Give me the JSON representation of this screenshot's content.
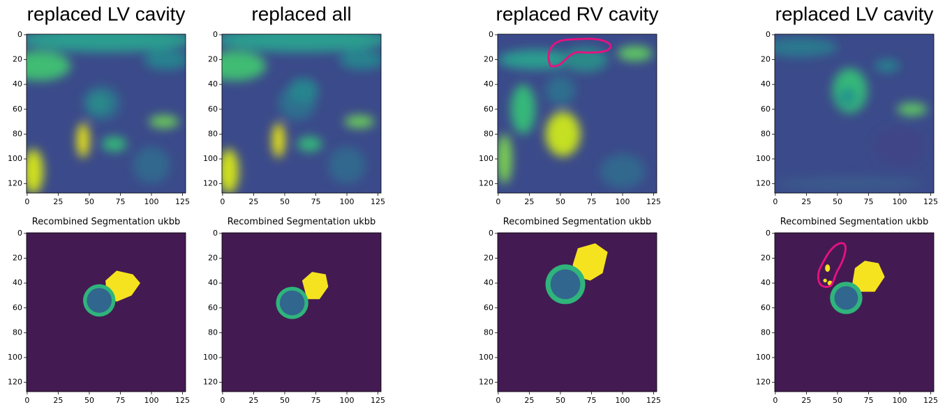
{
  "columns": [
    {
      "title": "replaced LV cavity",
      "seg_title": "Recombined Segmentation ukbb"
    },
    {
      "title": "replaced all",
      "seg_title": "Recombined Segmentation ukbb"
    },
    {
      "title": "replaced RV cavity",
      "seg_title": "Recombined Segmentation ukbb"
    },
    {
      "title": "replaced LV cavity",
      "seg_title": "Recombined Segmentation ukbb"
    }
  ],
  "axes": {
    "xticks": [
      0,
      25,
      50,
      75,
      100,
      125
    ],
    "yticks": [
      0,
      20,
      40,
      60,
      80,
      100,
      120
    ],
    "lim": [
      -0.5,
      127.5
    ]
  }
}
